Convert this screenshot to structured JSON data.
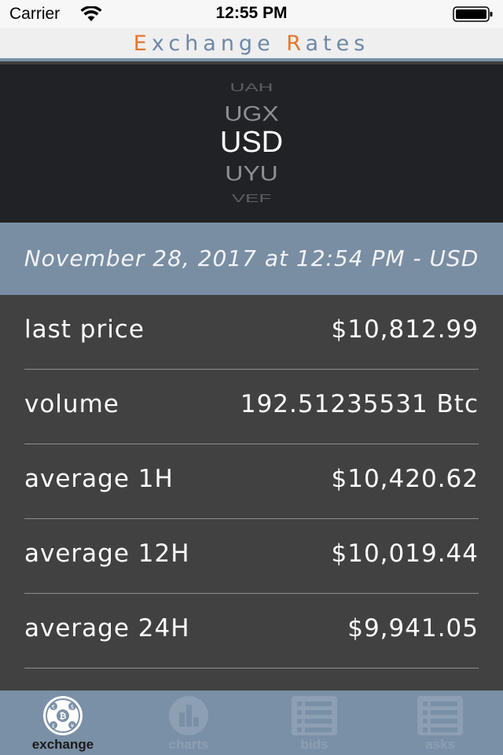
{
  "status_bar": {
    "carrier": "Carrier",
    "time": "12:55 PM"
  },
  "header": {
    "title_first_letter": "E",
    "title_part1": "xchange ",
    "title_second_letter": "R",
    "title_part2": "ates",
    "accent_color": "#e4762c"
  },
  "picker": {
    "items": [
      "UAH",
      "UGX",
      "USD",
      "UYU",
      "VEF"
    ],
    "selected": "USD"
  },
  "date_banner": {
    "text": "November 28, 2017 at 12:54 PM  -  USD"
  },
  "rates": [
    {
      "label": "last price",
      "value": "$10,812.99"
    },
    {
      "label": "volume",
      "value": "192.51235531 Btc"
    },
    {
      "label": "average 1H",
      "value": "$10,420.62"
    },
    {
      "label": "average 12H",
      "value": "$10,019.44"
    },
    {
      "label": "average 24H",
      "value": "$9,941.05"
    }
  ],
  "tabs": [
    {
      "label": "exchange",
      "icon": "exchange-icon",
      "active": true
    },
    {
      "label": "charts",
      "icon": "chart-icon",
      "active": false
    },
    {
      "label": "bids",
      "icon": "list-icon",
      "active": false
    },
    {
      "label": "asks",
      "icon": "list-icon",
      "active": false
    }
  ]
}
